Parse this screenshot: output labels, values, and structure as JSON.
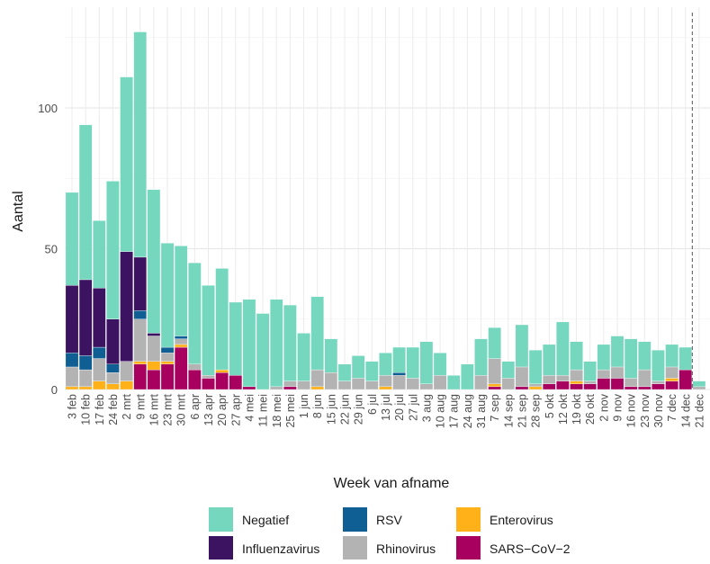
{
  "chart_data": {
    "type": "bar",
    "stacked": true,
    "xlabel": "Week van afname",
    "ylabel": "Aantal",
    "ylim": [
      0,
      132
    ],
    "y_ticks": [
      0,
      50,
      100
    ],
    "grid": true,
    "legend_position": "bottom",
    "reference_line_after_category": "14 dec",
    "categories": [
      "3 feb",
      "10 feb",
      "17 feb",
      "24 feb",
      "2 mrt",
      "9 mrt",
      "16 mrt",
      "23 mrt",
      "30 mrt",
      "6 apr",
      "13 apr",
      "20 apr",
      "27 apr",
      "4 mei",
      "11 mei",
      "18 mei",
      "25 mei",
      "1 jun",
      "8 jun",
      "15 jun",
      "22 jun",
      "29 jun",
      "6 jul",
      "13 jul",
      "20 jul",
      "27 jul",
      "3 aug",
      "10 aug",
      "17 aug",
      "24 aug",
      "31 aug",
      "7 sep",
      "14 sep",
      "21 sep",
      "28 sep",
      "5 okt",
      "12 okt",
      "19 okt",
      "26 okt",
      "2 nov",
      "9 nov",
      "16 nov",
      "23 nov",
      "30 nov",
      "7 dec",
      "14 dec",
      "21 dec"
    ],
    "visible_tick_labels": [
      "3 feb",
      "10 feb",
      "17 feb",
      "24 feb",
      "2 mrt",
      "9 mrt",
      "16 mrt",
      "23 mrt",
      "30 mrt",
      "6 apr",
      "13 apr",
      "20 apr",
      "27 apr",
      "4 mei",
      "11 mei",
      "18 mei",
      "25 mei",
      "1 jun",
      "8 jun",
      "15 jun",
      "22 jun",
      "29 jun",
      "6 jul",
      "13 jul",
      "20 jul",
      "27 jul",
      "3 aug",
      "10 aug",
      "17 aug",
      "24 aug",
      "31 aug",
      "7 sep",
      "14 sep",
      "21 sep",
      "28 sep",
      "5 okt",
      "12 okt",
      "19 okt",
      "26 okt",
      "2 nov",
      "9 nov",
      "16 nov",
      "23 nov",
      "30 nov",
      "7 dec",
      "14 dec",
      "21 dec"
    ],
    "series": [
      {
        "name": "SARS−CoV−2",
        "color": "#A8005E",
        "values": [
          0,
          0,
          0,
          0,
          0,
          9,
          7,
          9,
          15,
          7,
          4,
          6,
          5,
          1,
          0,
          0,
          1,
          0,
          0,
          0,
          0,
          0,
          0,
          0,
          0,
          0,
          0,
          0,
          0,
          0,
          0,
          1,
          0,
          1,
          0,
          2,
          3,
          2,
          2,
          4,
          4,
          1,
          1,
          2,
          3,
          7,
          0
        ]
      },
      {
        "name": "Enterovirus",
        "color": "#FFB11A",
        "values": [
          1,
          1,
          3,
          2,
          3,
          1,
          3,
          1,
          1,
          0,
          0,
          1,
          0,
          0,
          0,
          0,
          0,
          0,
          1,
          0,
          0,
          0,
          0,
          1,
          0,
          0,
          0,
          0,
          0,
          0,
          0,
          1,
          0,
          0,
          1,
          0,
          0,
          1,
          0,
          0,
          0,
          0,
          0,
          0,
          1,
          0,
          0
        ]
      },
      {
        "name": "Rhinovirus",
        "color": "#B3B3B3",
        "values": [
          7,
          6,
          8,
          4,
          7,
          15,
          9,
          3,
          2,
          2,
          1,
          0,
          0,
          0,
          0,
          1,
          2,
          3,
          6,
          6,
          3,
          4,
          3,
          4,
          5,
          4,
          2,
          5,
          0,
          0,
          5,
          9,
          4,
          7,
          1,
          3,
          2,
          4,
          1,
          3,
          4,
          3,
          6,
          1,
          4,
          0,
          1
        ]
      },
      {
        "name": "RSV",
        "color": "#0F5F94",
        "values": [
          5,
          5,
          4,
          3,
          0,
          3,
          0,
          2,
          1,
          0,
          0,
          0,
          0,
          0,
          0,
          0,
          0,
          0,
          0,
          0,
          0,
          0,
          0,
          0,
          1,
          0,
          0,
          0,
          0,
          0,
          0,
          0,
          0,
          0,
          0,
          0,
          0,
          0,
          0,
          0,
          0,
          0,
          0,
          0,
          0,
          0,
          0
        ]
      },
      {
        "name": "Influenzavirus",
        "color": "#3C1361",
        "values": [
          24,
          27,
          21,
          16,
          39,
          19,
          1,
          0,
          0,
          0,
          0,
          0,
          0,
          0,
          0,
          0,
          0,
          0,
          0,
          0,
          0,
          0,
          0,
          0,
          0,
          0,
          0,
          0,
          0,
          0,
          0,
          0,
          0,
          0,
          0,
          0,
          0,
          0,
          0,
          0,
          0,
          0,
          0,
          0,
          0,
          0,
          0
        ]
      },
      {
        "name": "Negatief",
        "color": "#76D7BF",
        "values": [
          33,
          55,
          24,
          49,
          62,
          80,
          51,
          37,
          32,
          36,
          32,
          36,
          26,
          31,
          27,
          31,
          27,
          17,
          26,
          12,
          6,
          8,
          7,
          8,
          9,
          11,
          15,
          8,
          5,
          9,
          13,
          11,
          6,
          15,
          12,
          11,
          19,
          10,
          7,
          9,
          11,
          14,
          10,
          11,
          8,
          8,
          2
        ]
      }
    ],
    "legend_order": [
      "Negatief",
      "RSV",
      "Enterovirus",
      "Influenzavirus",
      "Rhinovirus",
      "SARS−CoV−2"
    ]
  }
}
